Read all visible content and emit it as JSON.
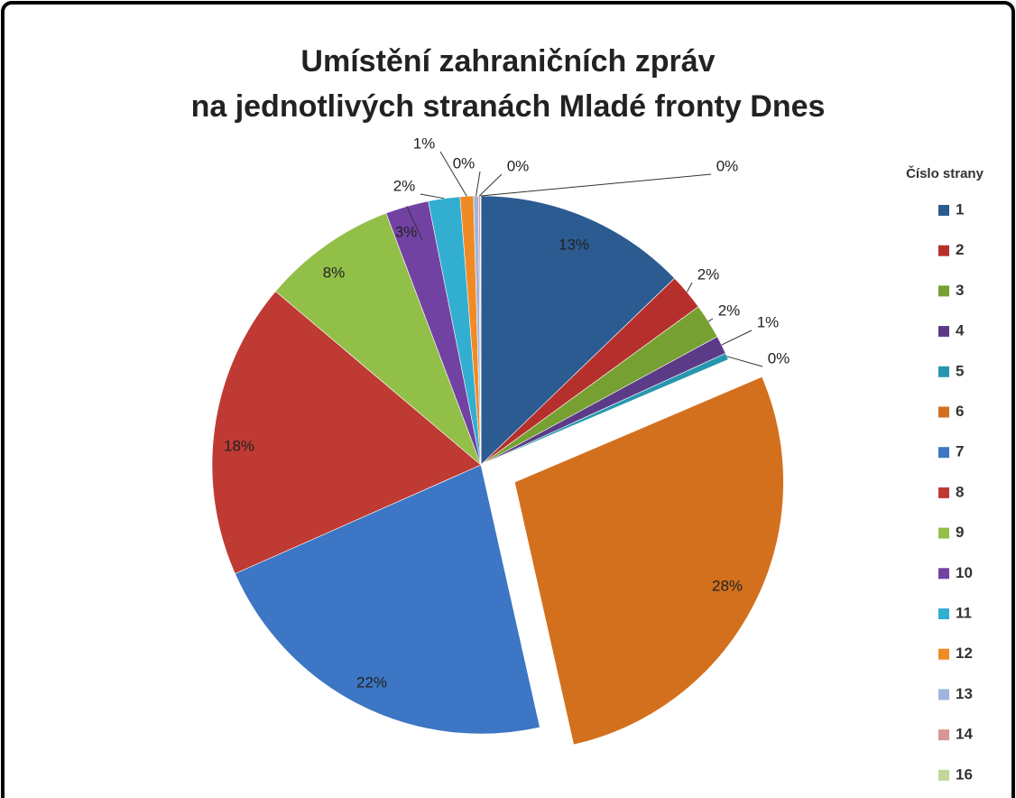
{
  "chart_data": {
    "type": "pie",
    "title": "Umístění zahraničních zpráv",
    "subtitle": "na jednotlivých stranách Mladé fronty Dnes",
    "legend_title": "Číslo strany",
    "legend": "right",
    "categories": [
      "1",
      "2",
      "3",
      "4",
      "5",
      "6",
      "7",
      "8",
      "9",
      "10",
      "11",
      "12",
      "13",
      "14",
      "16"
    ],
    "values": [
      12.8,
      2.2,
      2.1,
      1.1,
      0.4,
      27.9,
      21.9,
      17.8,
      8.1,
      2.6,
      1.9,
      0.8,
      0.3,
      0.1,
      0.04
    ],
    "value_labels": [
      "13%",
      "2%",
      "2%",
      "1%",
      "0%",
      "28%",
      "22%",
      "18%",
      "8%",
      "3%",
      "2%",
      "1%",
      "0%",
      "0%",
      "0%"
    ],
    "colors": [
      "#2b5b91",
      "#b5302c",
      "#77a032",
      "#5b3b87",
      "#2797b1",
      "#d3701e",
      "#3c76c4",
      "#bf3a33",
      "#92bf48",
      "#7242a3",
      "#31aed0",
      "#f08a24",
      "#9db6dc",
      "#d99694",
      "#c3d69b"
    ],
    "exploded": [
      "6"
    ]
  }
}
